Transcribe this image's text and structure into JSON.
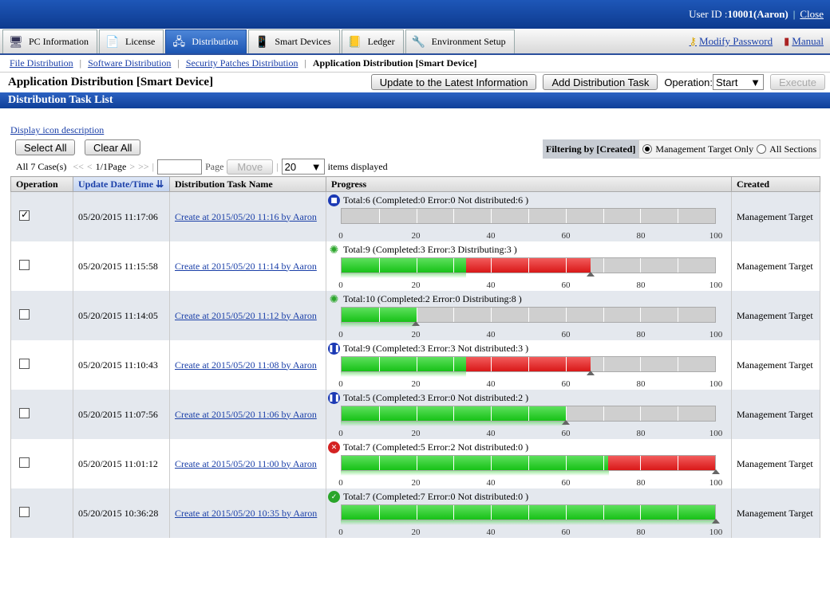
{
  "header": {
    "user_label": "User ID : ",
    "user_value": "10001(Aaron)",
    "close": "Close"
  },
  "tabs": [
    {
      "label": "PC Information",
      "icon": "pc-icon"
    },
    {
      "label": "License",
      "icon": "license-icon"
    },
    {
      "label": "Distribution",
      "icon": "distribution-icon",
      "active": true
    },
    {
      "label": "Smart Devices",
      "icon": "smart-device-icon"
    },
    {
      "label": "Ledger",
      "icon": "ledger-icon"
    },
    {
      "label": "Environment Setup",
      "icon": "tools-icon"
    }
  ],
  "right_links": {
    "modify_password": "Modify Password",
    "manual": "Manual"
  },
  "subnav": {
    "items": [
      "File Distribution",
      "Software Distribution",
      "Security Patches Distribution"
    ],
    "current": "Application Distribution [Smart Device]"
  },
  "page_title": "Application Distribution [Smart Device]",
  "toolbar": {
    "update": "Update to the Latest Information",
    "add": "Add Distribution Task",
    "operation_label": "Operation:",
    "operation_value": "Start",
    "execute": "Execute"
  },
  "section_title": "Distribution Task List",
  "icon_desc": "Display icon description",
  "select_all": "Select All",
  "clear_all": "Clear All",
  "filter": {
    "label": "Filtering by [Created]",
    "opt1": "Management Target Only",
    "opt2": "All Sections"
  },
  "paging": {
    "count": "All 7 Case(s)",
    "first": "<<",
    "prev": "<",
    "page_info": "1/1Page",
    "next": ">",
    "last": ">>",
    "page_input": "",
    "page_label": "Page",
    "move": "Move",
    "per_page": "20",
    "per_page_label": "items displayed"
  },
  "columns": [
    "Operation",
    "Update Date/Time",
    "Distribution Task Name",
    "Progress",
    "Created"
  ],
  "rows": [
    {
      "checked": true,
      "date": "05/20/2015 11:17:06",
      "name": "Create at 2015/05/20 11:16 by Aaron",
      "status": "stop",
      "progress": "Total:6  (Completed:0  Error:0  Not distributed:6 )",
      "green": 0,
      "red": 0,
      "created": "Management Target"
    },
    {
      "checked": false,
      "date": "05/20/2015 11:15:58",
      "name": "Create at 2015/05/20 11:14 by Aaron",
      "status": "run",
      "progress": "Total:9  (Completed:3  Error:3  Distributing:3 )",
      "green": 33.3,
      "red": 33.3,
      "created": "Management Target"
    },
    {
      "checked": false,
      "date": "05/20/2015 11:14:05",
      "name": "Create at 2015/05/20 11:12 by Aaron",
      "status": "run",
      "progress": "Total:10  (Completed:2  Error:0  Distributing:8 )",
      "green": 20,
      "red": 0,
      "created": "Management Target"
    },
    {
      "checked": false,
      "date": "05/20/2015 11:10:43",
      "name": "Create at 2015/05/20 11:08 by Aaron",
      "status": "pause",
      "progress": "Total:9  (Completed:3  Error:3  Not distributed:3 )",
      "green": 33.3,
      "red": 33.3,
      "created": "Management Target"
    },
    {
      "checked": false,
      "date": "05/20/2015 11:07:56",
      "name": "Create at 2015/05/20 11:06 by Aaron",
      "status": "pause",
      "progress": "Total:5  (Completed:3  Error:0  Not distributed:2 )",
      "green": 60,
      "red": 0,
      "created": "Management Target"
    },
    {
      "checked": false,
      "date": "05/20/2015 11:01:12",
      "name": "Create at 2015/05/20 11:00 by Aaron",
      "status": "err",
      "progress": "Total:7  (Completed:5  Error:2  Not distributed:0 )",
      "green": 71.4,
      "red": 28.6,
      "created": "Management Target"
    },
    {
      "checked": false,
      "date": "05/20/2015 10:36:28",
      "name": "Create at 2015/05/20 10:35 by Aaron",
      "status": "ok",
      "progress": "Total:7  (Completed:7  Error:0  Not distributed:0 )",
      "green": 100,
      "red": 0,
      "created": "Management Target"
    }
  ],
  "ticks": [
    "0",
    "20",
    "40",
    "60",
    "80",
    "100"
  ],
  "colors": {
    "header": "#1e57b8",
    "completed": "#17c117",
    "error": "#d91818",
    "link": "#1a3fa8"
  }
}
